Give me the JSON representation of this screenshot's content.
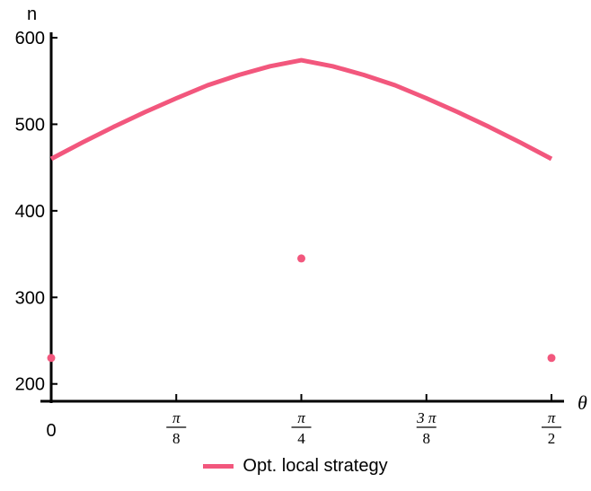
{
  "colors": {
    "series": "#F2577D",
    "axis": "#000000"
  },
  "chart_data": {
    "type": "line",
    "title": "",
    "xlabel": "θ",
    "ylabel": "n",
    "xlim": [
      0,
      1.5708
    ],
    "ylim": [
      180,
      600
    ],
    "y_ticks": [
      200,
      300,
      400,
      500,
      600
    ],
    "x_ticks": [
      {
        "value": 0,
        "num": "0",
        "den": ""
      },
      {
        "value": 0.3927,
        "num": "π",
        "den": "8"
      },
      {
        "value": 0.7854,
        "num": "π",
        "den": "4"
      },
      {
        "value": 1.1781,
        "num": "3 π",
        "den": "8"
      },
      {
        "value": 1.5708,
        "num": "π",
        "den": "2"
      }
    ],
    "grid": false,
    "legend_position": "bottom-center",
    "series": [
      {
        "name": "Opt. local strategy",
        "curve": {
          "x": [
            0,
            0.0982,
            0.1963,
            0.2945,
            0.3927,
            0.4909,
            0.589,
            0.6872,
            0.7854,
            0.8836,
            0.9817,
            1.0799,
            1.1781,
            1.2763,
            1.3744,
            1.4726,
            1.5708
          ],
          "y": [
            460,
            479,
            497,
            514,
            530,
            545,
            557,
            567,
            574,
            567,
            557,
            545,
            530,
            514,
            497,
            479,
            460
          ]
        },
        "points": {
          "x": [
            0,
            0.7854,
            1.5708
          ],
          "y": [
            230,
            345,
            230
          ]
        }
      }
    ]
  }
}
